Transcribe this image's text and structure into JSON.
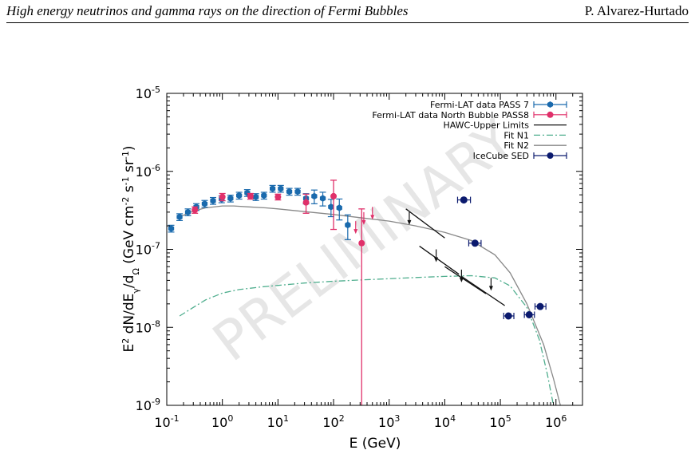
{
  "header": {
    "title": "High energy neutrinos and gamma rays on the direction of Fermi Bubbles",
    "author": "P. Alvarez-Hurtado"
  },
  "watermark": "PRELIMINARY",
  "colors": {
    "pass7": "#1a6aad",
    "pass8": "#e0306a",
    "hawc": "#111111",
    "fitn1": "#4fae8e",
    "fitn2": "#888888",
    "icecube": "#0b1a6e",
    "watermark": "#e6e6e6"
  },
  "chart_data": {
    "type": "scatter",
    "title": "",
    "xlabel": "E (GeV)",
    "ylabel": "E2 dN/dEγ/dΩ (GeV cm-2 s-1 sr-1)",
    "xscale": "log",
    "yscale": "log",
    "xlim": [
      0.1,
      3000000
    ],
    "ylim": [
      1e-09,
      1e-05
    ],
    "grid": false,
    "legend_position": "top-right",
    "x_ticks": [
      {
        "value": 0.1,
        "base": "10",
        "exp": "-1"
      },
      {
        "value": 1,
        "base": "10",
        "exp": "0"
      },
      {
        "value": 10,
        "base": "10",
        "exp": "1"
      },
      {
        "value": 100,
        "base": "10",
        "exp": "2"
      },
      {
        "value": 1000,
        "base": "10",
        "exp": "3"
      },
      {
        "value": 10000,
        "base": "10",
        "exp": "4"
      },
      {
        "value": 100000,
        "base": "10",
        "exp": "5"
      },
      {
        "value": 1000000,
        "base": "10",
        "exp": "6"
      }
    ],
    "y_ticks": [
      {
        "value": 1e-09,
        "base": "10",
        "exp": "-9"
      },
      {
        "value": 1e-08,
        "base": "10",
        "exp": "-8"
      },
      {
        "value": 1e-07,
        "base": "10",
        "exp": "-7"
      },
      {
        "value": 1e-06,
        "base": "10",
        "exp": "-6"
      },
      {
        "value": 1e-05,
        "base": "10",
        "exp": "-5"
      }
    ],
    "series": [
      {
        "name": "Fermi-LAT data PASS 7",
        "kind": "points",
        "x": [
          0.12,
          0.17,
          0.24,
          0.34,
          0.48,
          0.68,
          0.97,
          1.4,
          2.0,
          2.8,
          4.0,
          5.6,
          8.0,
          11.2,
          16,
          22.6,
          32,
          45,
          64,
          90,
          127,
          180
        ],
        "y": [
          1.85e-07,
          2.6e-07,
          3e-07,
          3.5e-07,
          3.85e-07,
          4.2e-07,
          4.4e-07,
          4.5e-07,
          4.9e-07,
          5.3e-07,
          4.7e-07,
          4.9e-07,
          6e-07,
          6e-07,
          5.5e-07,
          5.5e-07,
          4.5e-07,
          4.8e-07,
          4.5e-07,
          3.5e-07,
          3.4e-07,
          2.05e-07
        ],
        "yerr": [
          0.1,
          0.1,
          0.1,
          0.1,
          0.1,
          0.1,
          0.1,
          0.1,
          0.1,
          0.1,
          0.1,
          0.1,
          0.1,
          0.1,
          0.1,
          0.1,
          0.15,
          0.2,
          0.2,
          0.25,
          0.3,
          0.35
        ]
      },
      {
        "name": "Fermi-LAT data North Bubble PASS8",
        "kind": "points",
        "x": [
          0.32,
          1.0,
          3.2,
          10,
          32,
          100,
          320
        ],
        "y": [
          3.2e-07,
          4.7e-07,
          4.8e-07,
          4.7e-07,
          4e-07,
          4.8e-07,
          1.2e-07
        ],
        "yerr_lo": [
          2.9e-07,
          4.2e-07,
          4.4e-07,
          4.3e-07,
          2.9e-07,
          1.8e-07,
          1e-09
        ],
        "yerr_hi": [
          3.5e-07,
          5.2e-07,
          5.2e-07,
          5.1e-07,
          5.1e-07,
          7.7e-07,
          3.3e-07
        ],
        "upper_limits": [
          {
            "x": 250,
            "y": 2.3e-07
          },
          {
            "x": 350,
            "y": 3e-07
          },
          {
            "x": 500,
            "y": 3.5e-07
          }
        ]
      },
      {
        "name": "HAWC-Upper Limits",
        "kind": "segments",
        "segments": [
          [
            2000,
            10000.0
          ],
          [
            3500,
            18000.0
          ],
          [
            10000.0,
            55000.0
          ],
          [
            20000.0,
            120000.0
          ]
        ],
        "segment_y": [
          [
            3.3e-07,
            1.4e-07
          ],
          [
            1.1e-07,
            4.8e-08
          ],
          [
            6e-08,
            2.7e-08
          ],
          [
            4.5e-08,
            1.9e-08
          ]
        ],
        "arrows": [
          {
            "x": 2300,
            "y": 3e-07
          },
          {
            "x": 7000,
            "y": 1e-07
          },
          {
            "x": 20000,
            "y": 5.5e-08
          },
          {
            "x": 68000,
            "y": 4.3e-08
          }
        ]
      },
      {
        "name": "Fit N1",
        "kind": "curve",
        "x": [
          0.17,
          0.3,
          0.5,
          1,
          2,
          5,
          10,
          30,
          100,
          300,
          1000,
          3000,
          10000,
          30000,
          80000,
          150000,
          300000,
          500000,
          700000,
          900000
        ],
        "y": [
          1.4e-08,
          1.8e-08,
          2.25e-08,
          2.75e-08,
          3.05e-08,
          3.3e-08,
          3.45e-08,
          3.7e-08,
          3.9e-08,
          4.05e-08,
          4.2e-08,
          4.35e-08,
          4.5e-08,
          4.6e-08,
          4.3e-08,
          3.4e-08,
          1.8e-08,
          7e-09,
          2.5e-09,
          1e-09
        ]
      },
      {
        "name": "Fit N2",
        "kind": "curve",
        "x": [
          0.17,
          0.3,
          0.5,
          1,
          1.6,
          3,
          6,
          10,
          30,
          100,
          300,
          1000,
          3000,
          10000,
          30000,
          80000,
          150000,
          300000,
          600000,
          900000,
          1200000
        ],
        "y": [
          2.6e-07,
          3.1e-07,
          3.4e-07,
          3.6e-07,
          3.6e-07,
          3.5e-07,
          3.4e-07,
          3.3e-07,
          3.05e-07,
          2.8e-07,
          2.55e-07,
          2.3e-07,
          2e-07,
          1.65e-07,
          1.3e-07,
          8.5e-08,
          5e-08,
          2e-08,
          6e-09,
          2.2e-09,
          1e-09
        ]
      },
      {
        "name": "IceCube SED",
        "kind": "points",
        "x": [
          22000,
          35000,
          140000,
          330000,
          520000
        ],
        "y": [
          4.3e-07,
          1.2e-07,
          1.4e-08,
          1.45e-08,
          1.85e-08
        ],
        "xerr_lo": [
          17000,
          27000,
          115000,
          270000,
          420000
        ],
        "xerr_hi": [
          29000,
          45000,
          175000,
          410000,
          660000
        ],
        "yerr": [
          0.06,
          0.05,
          0.07,
          0.07,
          0.07
        ]
      }
    ]
  }
}
